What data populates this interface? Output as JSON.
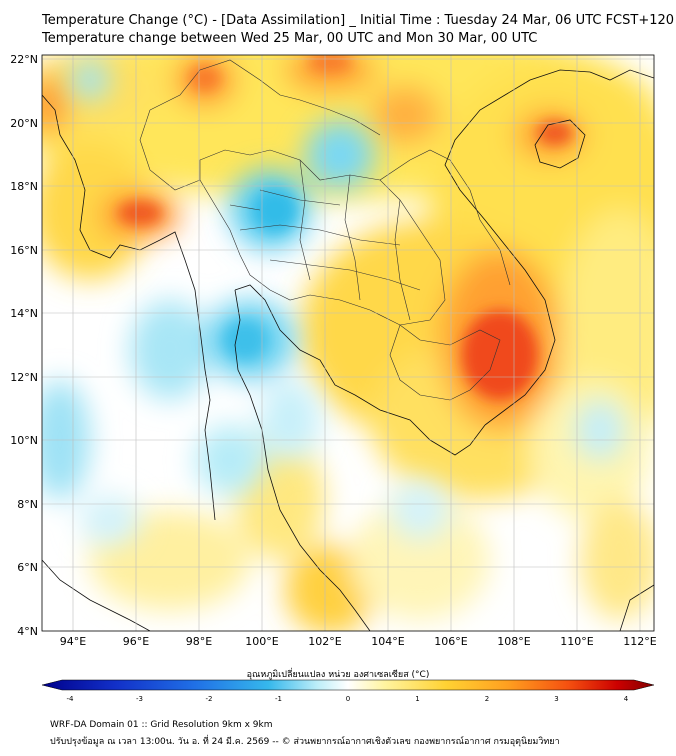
{
  "header": {
    "title_line1": "Temperature Change (°C) - [Data Assimilation] _ Initial Time : Tuesday 24 Mar, 06 UTC FCST+120",
    "title_line2": "Temperature change between Wed 25 Mar, 00 UTC and Mon 30 Mar, 00 UTC"
  },
  "map": {
    "lon_range": [
      93,
      112.5
    ],
    "lat_range": [
      4,
      22.2
    ],
    "lon_ticks": [
      "94°E",
      "96°E",
      "98°E",
      "100°E",
      "102°E",
      "104°E",
      "106°E",
      "108°E",
      "110°E",
      "112°E"
    ],
    "lat_ticks": [
      "22°N",
      "20°N",
      "18°N",
      "16°N",
      "14°N",
      "12°N",
      "10°N",
      "8°N",
      "6°N",
      "4°N"
    ],
    "gridlines": true,
    "field_anomalies": [
      {
        "label": "warm",
        "lon": 107.6,
        "lat": 12.8,
        "value": 3.0
      },
      {
        "label": "warm",
        "lon": 109.5,
        "lat": 19.8,
        "value": 2.5
      },
      {
        "label": "warm",
        "lon": 96.2,
        "lat": 17.1,
        "value": 2.5
      },
      {
        "label": "warm",
        "lon": 98.3,
        "lat": 21.6,
        "value": 2.0
      },
      {
        "label": "warm",
        "lon": 102.2,
        "lat": 22.0,
        "value": 2.0
      },
      {
        "label": "cool",
        "lon": 100.7,
        "lat": 17.2,
        "value": -1.2
      },
      {
        "label": "cool",
        "lon": 99.8,
        "lat": 13.2,
        "value": -1.0
      },
      {
        "label": "cool",
        "lon": 102.5,
        "lat": 18.8,
        "value": -1.0
      },
      {
        "label": "cool",
        "lon": 93.5,
        "lat": 10.2,
        "value": -0.8
      }
    ]
  },
  "colorbar": {
    "title": "อุณหภูมิเปลี่ยนแปลง หน่วย องศาเซลเซียส (°C)",
    "range": [
      -4,
      4
    ],
    "ticks": [
      "-4",
      "-3",
      "-2",
      "-1",
      "0",
      "1",
      "2",
      "3",
      "4"
    ],
    "colors": [
      "#00008b",
      "#1230c8",
      "#2070e6",
      "#36b8ec",
      "#bdeef8",
      "#ffffff",
      "#fff4a0",
      "#ffd233",
      "#ffa020",
      "#f55010",
      "#cc0000",
      "#800000"
    ]
  },
  "footer": {
    "line1": "WRF-DA Domain 01 :: Grid Resolution 9km x 9km",
    "line2": "ปรับปรุงข้อมูล ณ เวลา 13:00น. วัน อ. ที่ 24 มี.ค. 2569 -- © ส่วนพยากรณ์อากาศเชิงตัวเลข กองพยากรณ์อากาศ กรมอุตุนิยมวิทยา"
  }
}
